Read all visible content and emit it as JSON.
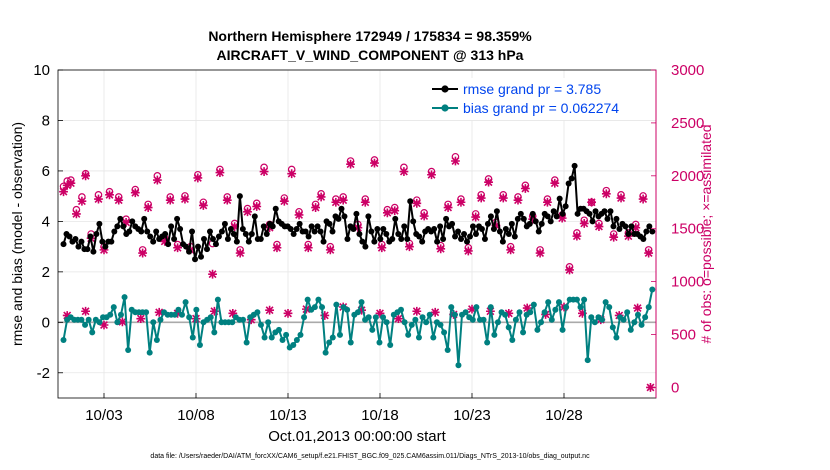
{
  "chart_data": {
    "type": "line",
    "title_line1": "Northern Hemisphere 172949 / 175834 = 98.359%",
    "title_line2": "AIRCRAFT_V_WIND_COMPONENT @ 313 hPa",
    "xlabel": "Oct.01,2013 00:00:00 start",
    "ylabel": "rmse and bias (model - observation)",
    "ylabel_right": "# of obs: o=possible; ×=assimilated",
    "footer": "data file: /Users/raeder/DAI/ATM_forcXX/CAM6_setup/f.e21.FHIST_BGC.f09_025.CAM6assim.011/Diags_NTrS_2013-10/obs_diag_output.nc",
    "x_range": [
      0.5,
      33.0
    ],
    "x_ticks": [
      3,
      8,
      13,
      18,
      23,
      28
    ],
    "x_tick_labels": [
      "10/03",
      "10/08",
      "10/13",
      "10/18",
      "10/23",
      "10/28"
    ],
    "ylim": [
      -3,
      10
    ],
    "y_ticks": [
      -2,
      0,
      2,
      4,
      6,
      8,
      10
    ],
    "ylim_right": [
      -100,
      3000
    ],
    "y_ticks_right": [
      0,
      500,
      1000,
      1500,
      2000,
      2500,
      3000
    ],
    "colors": {
      "rmse": "#000000",
      "bias": "#008080",
      "obs": "#cc0066",
      "zero_line": "#aaaaaa",
      "legend_text": "#0044ee"
    },
    "series": [
      {
        "name": "rmse grand pr = 3.785",
        "values": [
          3.1,
          3.5,
          3.4,
          3.2,
          3.3,
          3.0,
          3.2,
          2.9,
          2.9,
          3.4,
          2.8,
          3.5,
          3.9,
          3.2,
          3.0,
          3.2,
          3.2,
          3.6,
          3.8,
          4.1,
          3.8,
          3.5,
          3.6,
          4.0,
          3.8,
          3.7,
          3.6,
          4.1,
          3.6,
          3.4,
          3.2,
          3.6,
          3.3,
          3.4,
          3.5,
          3.1,
          3.8,
          3.3,
          4.1,
          3.7,
          3.1,
          3.0,
          2.8,
          3.6,
          2.5,
          3.0,
          2.6,
          3.3,
          2.9,
          3.6,
          3.3,
          3.1,
          3.4,
          3.6,
          3.9,
          3.3,
          3.7,
          3.5,
          3.2,
          5.0,
          3.7,
          3.5,
          3.2,
          3.5,
          4.2,
          3.3,
          3.3,
          3.8,
          3.5,
          3.9,
          3.8,
          4.5,
          4.0,
          3.9,
          3.8,
          3.8,
          3.7,
          3.5,
          3.7,
          3.9,
          3.6,
          3.6,
          3.4,
          3.8,
          3.6,
          3.8,
          3.6,
          3.2,
          4.0,
          3.9,
          3.6,
          4.2,
          4.1,
          4.5,
          4.2,
          3.3,
          3.8,
          3.7,
          4.3,
          3.5,
          3.2,
          3.0,
          4.2,
          3.6,
          3.2,
          3.7,
          3.3,
          3.7,
          3.5,
          3.2,
          3.3,
          4.1,
          3.5,
          3.3,
          3.8,
          3.3,
          4.8,
          4.0,
          3.5,
          3.4,
          3.2,
          3.6,
          3.7,
          3.6,
          3.7,
          3.2,
          3.8,
          3.3,
          4.1,
          3.8,
          3.9,
          3.4,
          3.6,
          3.3,
          3.5,
          3.2,
          3.4,
          3.8,
          3.5,
          3.8,
          3.7,
          3.3,
          3.9,
          4.2,
          3.7,
          4.4,
          3.6,
          3.2,
          3.7,
          3.5,
          3.9,
          3.4,
          4.1,
          4.3,
          4.1,
          3.8,
          3.9,
          4.3,
          4.0,
          3.6,
          3.9,
          4.3,
          4.2,
          4.0,
          4.4,
          4.2,
          4.9,
          4.3,
          4.6,
          5.5,
          5.7,
          6.2,
          4.3,
          4.5,
          4.5,
          4.4,
          4.3,
          4.0,
          4.4,
          4.2,
          4.3,
          4.4,
          4.1,
          4.4,
          3.8,
          4.1,
          3.7,
          3.9,
          3.8,
          3.5,
          3.8,
          3.5,
          3.5,
          3.4,
          3.3,
          3.6,
          3.8,
          3.6
        ]
      },
      {
        "name": "bias grand pr = 0.062274",
        "values": [
          -0.7,
          0.1,
          0.2,
          0.1,
          0.1,
          0.1,
          -0.1,
          0.1,
          -0.4,
          0.1,
          0.0,
          0.2,
          0.2,
          0.3,
          0.6,
          0.0,
          0.3,
          1.0,
          -1.1,
          0.5,
          0.4,
          0.4,
          0.4,
          0.4,
          -1.2,
          0.0,
          -0.7,
          0.1,
          0.4,
          0.3,
          0.3,
          0.3,
          0.5,
          0.3,
          0.8,
          0.2,
          -0.6,
          0.5,
          -0.9,
          0.0,
          0.1,
          0.2,
          -0.4,
          0.9,
          0.0,
          0.0,
          0.0,
          0.0,
          0.2,
          0.1,
          0.1,
          -0.8,
          0.2,
          0.3,
          0.4,
          -0.1,
          -0.6,
          0.0,
          -0.6,
          -0.4,
          -0.3,
          -0.7,
          -0.5,
          -1.0,
          -0.9,
          -0.7,
          -0.5,
          0.2,
          0.9,
          0.5,
          0.6,
          0.9,
          0.6,
          -1.2,
          -0.8,
          -0.6,
          0.7,
          -0.5,
          0.6,
          0.5,
          -0.8,
          0.3,
          0.4,
          0.8,
          0.1,
          0.2,
          -0.3,
          0.2,
          -0.8,
          0.2,
          0.0,
          -0.9,
          0.3,
          0.4,
          0.5,
          0.0,
          -0.5,
          -0.1,
          0.1,
          -0.6,
          0.2,
          0.0,
          0.3,
          -0.6,
          0.0,
          -0.1,
          -0.4,
          -1.1,
          0.6,
          0.3,
          -1.7,
          0.3,
          0.4,
          0.2,
          0.1,
          0.6,
          0.1,
          0.1,
          -0.8,
          0.6,
          -0.5,
          0.0,
          0.4,
          0.3,
          -0.2,
          -0.7,
          0.1,
          0.4,
          -0.4,
          0.3,
          0.4,
          0.7,
          -0.3,
          0.0,
          0.4,
          0.8,
          0.1,
          0.5,
          0.8,
          -0.3,
          0.6,
          0.9,
          0.9,
          0.9,
          0.6,
          0.9,
          -1.5,
          0.2,
          0.0,
          0.2,
          0.1,
          0.8,
          0.6,
          -0.2,
          -0.6,
          0.2,
          0.1,
          0.4,
          -0.3,
          0.0,
          0.3,
          -0.1,
          0.2,
          0.6,
          1.3
        ]
      }
    ],
    "obs_possible": {
      "x": [
        0.8,
        1.0,
        1.2,
        1.5,
        1.8,
        2.0,
        2.3,
        2.7,
        3.0,
        3.3,
        3.8,
        4.2,
        4.7,
        5.1,
        5.4,
        5.9,
        6.3,
        6.6,
        7.0,
        7.4,
        7.7,
        8.1,
        8.4,
        8.9,
        9.3,
        9.7,
        10.1,
        10.4,
        10.8,
        11.3,
        11.7,
        12.0,
        12.4,
        12.8,
        13.2,
        13.6,
        14.1,
        14.5,
        14.8,
        15.3,
        15.6,
        16.0,
        16.4,
        16.8,
        17.2,
        17.7,
        18.1,
        18.4,
        18.8,
        19.3,
        19.6,
        20.0,
        20.4,
        20.8,
        21.3,
        21.7,
        22.1,
        22.4,
        22.8,
        23.2,
        23.5,
        23.9,
        24.3,
        24.7,
        25.1,
        25.5,
        25.9,
        26.3,
        26.7,
        27.1,
        27.5,
        27.9,
        28.3,
        28.7,
        29.1,
        29.5,
        29.9,
        30.3,
        30.7,
        31.1,
        31.5,
        31.9,
        32.3,
        32.6
      ],
      "y": [
        1900,
        1950,
        1960,
        1680,
        1800,
        2020,
        1450,
        1820,
        1330,
        1850,
        1800,
        1590,
        1870,
        1300,
        1730,
        2000,
        1410,
        1800,
        1350,
        1810,
        1330,
        2010,
        1750,
        1360,
        2060,
        1800,
        1550,
        1300,
        1690,
        1740,
        2080,
        1540,
        1350,
        1790,
        2060,
        1660,
        1350,
        1730,
        1830,
        1330,
        1780,
        1800,
        2140,
        1540,
        1780,
        2150,
        1350,
        1680,
        1700,
        2080,
        1360,
        1770,
        1650,
        2040,
        1340,
        1730,
        2180,
        1780,
        1320,
        1640,
        1820,
        1970,
        1560,
        1820,
        1330,
        1800,
        1910,
        1620,
        1300,
        1780,
        1960,
        1630,
        1140,
        1460,
        1580,
        1750,
        1550,
        1860,
        1450,
        1820,
        1460,
        1540,
        1810,
        1300
      ]
    },
    "obs_assimilated": {
      "x": [
        0.8,
        1.0,
        1.2,
        1.5,
        1.8,
        2.0,
        2.3,
        2.7,
        3.0,
        3.3,
        3.8,
        4.2,
        4.7,
        5.1,
        5.4,
        5.9,
        6.3,
        6.6,
        7.0,
        7.4,
        7.7,
        8.1,
        8.4,
        8.9,
        9.3,
        9.7,
        10.1,
        10.4,
        10.8,
        11.3,
        11.7,
        12.0,
        12.4,
        12.8,
        13.2,
        13.6,
        14.1,
        14.5,
        14.8,
        15.3,
        15.6,
        16.0,
        16.4,
        16.8,
        17.2,
        17.7,
        18.1,
        18.4,
        18.8,
        19.3,
        19.6,
        20.0,
        20.4,
        20.8,
        21.3,
        21.7,
        22.1,
        22.4,
        22.8,
        23.2,
        23.5,
        23.9,
        24.3,
        24.7,
        25.1,
        25.5,
        25.9,
        26.3,
        26.7,
        27.1,
        27.5,
        27.9,
        28.3,
        28.7,
        29.1,
        29.5,
        29.9,
        30.3,
        30.7,
        31.1,
        31.5,
        31.9,
        32.3,
        32.6,
        1.0,
        2.0,
        3.0,
        4.0,
        5.0,
        6.0,
        7.0,
        8.0,
        9.0,
        10.0,
        11.0,
        12.0,
        13.0,
        14.0,
        15.0,
        16.0,
        17.0,
        18.0,
        19.0,
        20.0,
        21.0,
        22.0,
        23.0,
        24.0,
        25.0,
        26.0,
        27.0,
        28.0,
        29.0,
        30.0,
        31.0,
        32.0,
        32.7
      ],
      "y": [
        1850,
        1910,
        1930,
        1640,
        1760,
        2000,
        1410,
        1780,
        1300,
        1820,
        1770,
        1560,
        1840,
        1270,
        1700,
        1960,
        1380,
        1770,
        1320,
        1780,
        1300,
        1980,
        1720,
        1070,
        2030,
        1770,
        1520,
        1270,
        1660,
        1710,
        2040,
        1510,
        1320,
        1760,
        2020,
        1630,
        1320,
        1700,
        1800,
        1300,
        1750,
        1770,
        2110,
        1510,
        1750,
        2120,
        1320,
        1650,
        1670,
        2040,
        1330,
        1740,
        1620,
        2010,
        1310,
        1700,
        2140,
        1750,
        1290,
        1610,
        1790,
        1940,
        1530,
        1790,
        1300,
        1770,
        1880,
        1590,
        1270,
        1750,
        1930,
        1600,
        1110,
        1430,
        1550,
        1750,
        1520,
        1830,
        1420,
        1790,
        1430,
        1510,
        1780,
        1270,
        680,
        720,
        590,
        620,
        650,
        710,
        700,
        650,
        720,
        700,
        640,
        730,
        700,
        740,
        680,
        760,
        730,
        700,
        650,
        720,
        710,
        690,
        740,
        720,
        700,
        750,
        690,
        760,
        700,
        640,
        680,
        750,
        0
      ]
    }
  }
}
